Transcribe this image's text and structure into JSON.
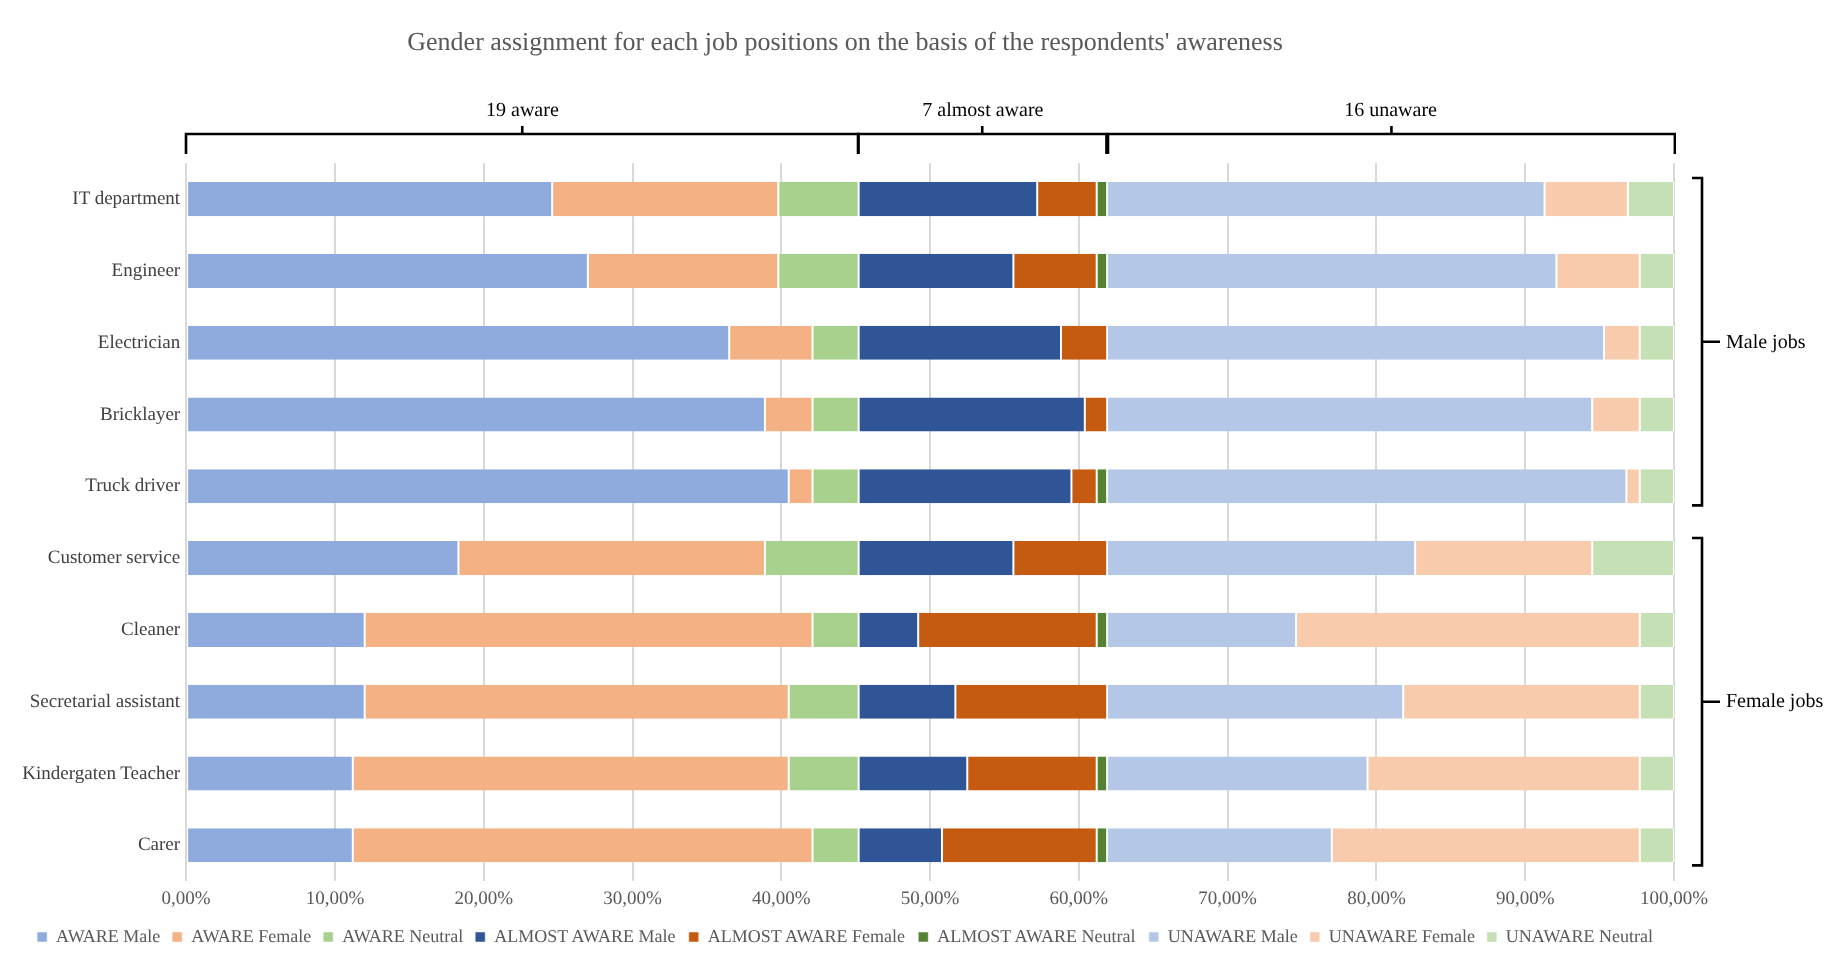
{
  "chart_data": {
    "type": "bar",
    "orientation": "horizontal",
    "stacked": true,
    "title": "Gender assignment for each job positions on the basis of the respondents' awareness",
    "categories": [
      "IT department",
      "Engineer",
      "Electrician",
      "Bricklayer",
      "Truck driver",
      "Customer service",
      "Cleaner",
      "Secretarial assistant",
      "Kindergaten Teacher",
      "Carer"
    ],
    "series": [
      {
        "name": "AWARE Male",
        "color": "#8faadc",
        "values": [
          24.6,
          27.0,
          36.5,
          38.9,
          40.5,
          18.3,
          12.0,
          12.0,
          11.2,
          11.2
        ]
      },
      {
        "name": "AWARE Female",
        "color": "#f4b183",
        "values": [
          15.2,
          12.8,
          5.6,
          3.2,
          1.6,
          20.6,
          30.1,
          28.5,
          29.3,
          30.9
        ]
      },
      {
        "name": "AWARE Neutral",
        "color": "#a9d18e",
        "values": [
          5.4,
          5.4,
          3.1,
          3.1,
          3.1,
          6.3,
          3.1,
          4.7,
          4.7,
          3.1
        ]
      },
      {
        "name": "ALMOST AWARE Male",
        "color": "#2f5597",
        "values": [
          12.0,
          10.4,
          13.6,
          15.2,
          14.3,
          10.4,
          4.0,
          6.5,
          7.3,
          5.6
        ]
      },
      {
        "name": "ALMOST AWARE Female",
        "color": "#c55a11",
        "values": [
          4.0,
          5.6,
          3.1,
          1.5,
          1.7,
          6.3,
          12.0,
          10.2,
          8.7,
          10.4
        ]
      },
      {
        "name": "ALMOST AWARE Neutral",
        "color": "#548235",
        "values": [
          0.7,
          0.7,
          0,
          0,
          0.7,
          0,
          0.7,
          0,
          0.7,
          0.7
        ]
      },
      {
        "name": "UNAWARE Male",
        "color": "#b4c7e7",
        "values": [
          29.4,
          30.2,
          33.4,
          32.6,
          34.9,
          20.7,
          12.7,
          19.9,
          17.5,
          15.1
        ]
      },
      {
        "name": "UNAWARE Female",
        "color": "#f8cbad",
        "values": [
          5.6,
          5.6,
          2.4,
          3.2,
          0.9,
          11.9,
          23.1,
          15.9,
          18.3,
          20.7
        ]
      },
      {
        "name": "UNAWARE Neutral",
        "color": "#c5e0b4",
        "values": [
          3.1,
          2.3,
          2.3,
          2.3,
          2.3,
          5.5,
          2.3,
          2.3,
          2.3,
          2.3
        ]
      }
    ],
    "xlim": [
      0,
      100
    ],
    "xticks": [
      {
        "value": 0,
        "label": "0,00%"
      },
      {
        "value": 10,
        "label": "10,00%"
      },
      {
        "value": 20,
        "label": "20,00%"
      },
      {
        "value": 30,
        "label": "30,00%"
      },
      {
        "value": 40,
        "label": "40,00%"
      },
      {
        "value": 50,
        "label": "50,00%"
      },
      {
        "value": 60,
        "label": "60,00%"
      },
      {
        "value": 70,
        "label": "70,00%"
      },
      {
        "value": 80,
        "label": "80,00%"
      },
      {
        "value": 90,
        "label": "90,00%"
      },
      {
        "value": 100,
        "label": "100,00%"
      }
    ],
    "grid": "x",
    "legend": "bottom",
    "annotations": [
      "19 aware",
      "7 almost aware",
      "16 unaware",
      "Male jobs",
      "Female jobs"
    ]
  }
}
